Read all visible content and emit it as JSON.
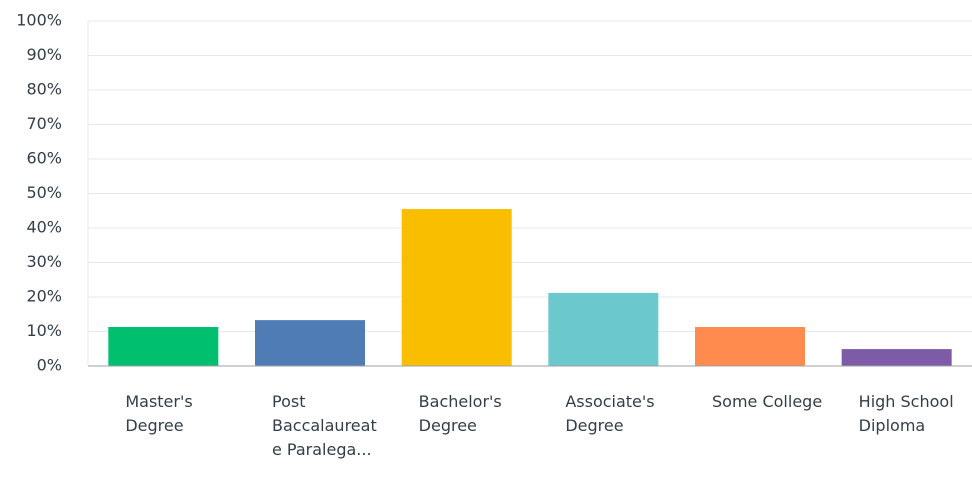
{
  "chart_data": {
    "type": "bar",
    "categories": [
      "Master's Degree",
      "Post Baccalaureate Paralega...",
      "Bachelor's Degree",
      "Associate's Degree",
      "Some College",
      "High School Diploma"
    ],
    "values": [
      11.3,
      13.3,
      45.5,
      21.2,
      11.3,
      4.9
    ],
    "colors": [
      "#00bf6f",
      "#507cb6",
      "#f9be00",
      "#6bc8cd",
      "#ff8b4f",
      "#7d5ba6"
    ],
    "ylim": [
      0,
      100
    ],
    "yticks": [
      {
        "value": 0,
        "label": "0%"
      },
      {
        "value": 10,
        "label": "10%"
      },
      {
        "value": 20,
        "label": "20%"
      },
      {
        "value": 30,
        "label": "30%"
      },
      {
        "value": 40,
        "label": "40%"
      },
      {
        "value": 50,
        "label": "50%"
      },
      {
        "value": 60,
        "label": "60%"
      },
      {
        "value": 70,
        "label": "70%"
      },
      {
        "value": 80,
        "label": "80%"
      },
      {
        "value": 90,
        "label": "90%"
      },
      {
        "value": 100,
        "label": "100%"
      }
    ],
    "grid": true
  }
}
